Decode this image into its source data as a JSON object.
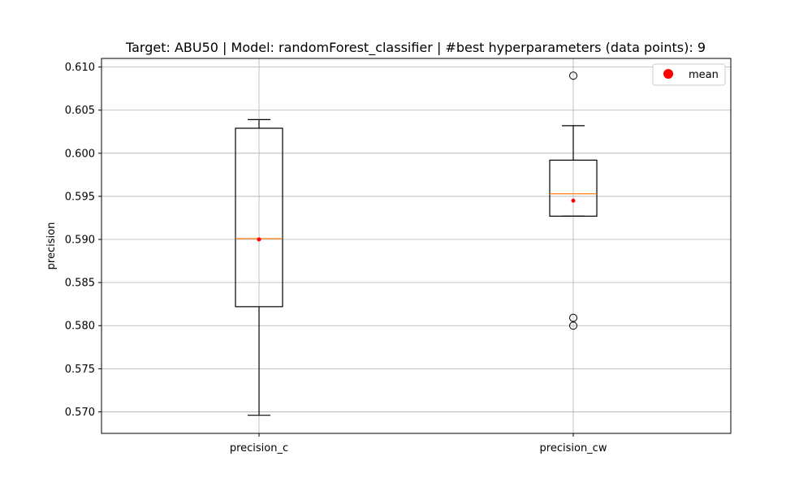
{
  "chart_data": {
    "type": "box",
    "title": "Target: ABU50 | Model: randomForest_classifier | #best hyperparameters (data points): 9",
    "xlabel": "",
    "ylabel": "precision",
    "ylim": [
      0.5675,
      0.611
    ],
    "yticks": [
      0.57,
      0.575,
      0.58,
      0.585,
      0.59,
      0.595,
      0.6,
      0.605,
      0.61
    ],
    "ytick_labels": [
      "0.570",
      "0.575",
      "0.580",
      "0.585",
      "0.590",
      "0.595",
      "0.600",
      "0.605",
      "0.610"
    ],
    "grid": true,
    "legend": {
      "placement": "top-right",
      "entries": [
        {
          "label": "mean",
          "marker": "circle",
          "color": "#ff0000"
        }
      ]
    },
    "colors": {
      "box": "#000000",
      "median": "#ff7f0e",
      "mean": "#ff0000",
      "grid": "#b0b0b0"
    },
    "categories": [
      "precision_c",
      "precision_cw"
    ],
    "boxes": [
      {
        "name": "precision_c",
        "whisker_low": 0.5696,
        "q1": 0.5822,
        "median": 0.5901,
        "q3": 0.6029,
        "whisker_high": 0.6039,
        "mean": 0.59,
        "outliers": []
      },
      {
        "name": "precision_cw",
        "whisker_low": 0.5927,
        "q1": 0.5927,
        "median": 0.5953,
        "q3": 0.5992,
        "whisker_high": 0.6032,
        "mean": 0.5945,
        "outliers": [
          0.609,
          0.5809,
          0.58
        ]
      }
    ]
  }
}
